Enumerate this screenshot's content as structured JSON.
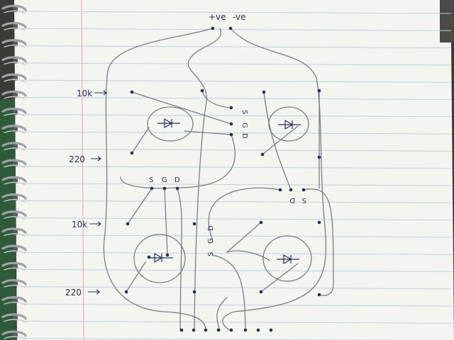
{
  "photo": {
    "subject": "hand-drawn circuit layout on lined notebook paper",
    "colors": {
      "paper": "#f4f4f1",
      "rule_line": "#c5cede",
      "margin_line": "#d9b7bd",
      "pencil": "#7b7d86",
      "ink": "#2a2f4f",
      "spiral": "#9ea1a6",
      "background": "#3a3a38",
      "green_mat": "#2f5b3a"
    }
  },
  "labels": {
    "pos_supply": "+ve",
    "neg_supply": "-ve",
    "r1": "10k",
    "r2": "220",
    "r3": "10k",
    "r4": "220",
    "s1": "S",
    "g1": "G",
    "d1": "D",
    "s2": "S",
    "g2": "G",
    "d2": "D",
    "d3": "D",
    "s3": "S",
    "d4": "D",
    "g4": "G",
    "s4": "S"
  }
}
